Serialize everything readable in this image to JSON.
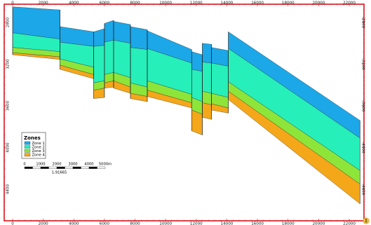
{
  "chart_data": {
    "type": "area",
    "title": "",
    "xlabel": "",
    "ylabel": "",
    "xlim": [
      -200,
      22900
    ],
    "ylim": [
      4600,
      2550
    ],
    "x_ticks": [
      "0",
      "2000",
      "4000",
      "6000",
      "8000",
      "10000",
      "12000",
      "14000",
      "16000",
      "18000",
      "20000",
      "22000"
    ],
    "y_ticks": [
      "2800",
      "3200",
      "3600",
      "4000",
      "4400"
    ],
    "y_ticks_right": [
      "-2800",
      "-3200",
      "-3600",
      "-4000",
      "-4400"
    ],
    "grid": false,
    "legend": {
      "title": "Zones",
      "placement": "bottom-left",
      "entries": [
        "Zone 1",
        "Zone 2",
        "Zone 3",
        "Zone 4"
      ]
    },
    "scale_bar": {
      "labels": [
        "0",
        "1000",
        "2000",
        "3000",
        "4000",
        "5000m"
      ],
      "ratio": "1:91665"
    },
    "colors": {
      "zone1": "#1ba7e8",
      "zone2": "#27efba",
      "zone3": "#8ee53a",
      "zone4": "#f5a71a",
      "frame": "#d9141c",
      "fault": "#222222"
    },
    "series": [
      {
        "name": "Zone 1",
        "color": "#1ba7e8"
      },
      {
        "name": "Zone 2",
        "color": "#27efba"
      },
      {
        "name": "Zone 3",
        "color": "#8ee53a"
      },
      {
        "name": "Zone 4",
        "color": "#f5a71a"
      }
    ],
    "segments": [
      {
        "x": [
          0,
          3100
        ],
        "h1": [
          2650,
          2680
        ],
        "h2": [
          2900,
          2960
        ],
        "h3": [
          3040,
          3080
        ],
        "h4": [
          3090,
          3130
        ],
        "h5": [
          3110,
          3155
        ]
      },
      {
        "x": [
          3100,
          5300
        ],
        "h1": [
          2840,
          2890
        ],
        "h2": [
          2990,
          3030
        ],
        "h3": [
          3150,
          3230
        ],
        "h4": [
          3210,
          3300
        ],
        "h5": [
          3250,
          3340
        ]
      },
      {
        "x": [
          5300,
          6000
        ],
        "h1": [
          2890,
          2860
        ],
        "h2": [
          3030,
          3020
        ],
        "h3": [
          3380,
          3360
        ],
        "h4": [
          3450,
          3430
        ],
        "h5": [
          3530,
          3520
        ]
      },
      {
        "x": [
          6000,
          6600
        ],
        "h1": [
          2810,
          2780
        ],
        "h2": [
          2990,
          2970
        ],
        "h3": [
          3300,
          3280
        ],
        "h4": [
          3380,
          3360
        ],
        "h5": [
          3430,
          3420
        ]
      },
      {
        "x": [
          6600,
          7700
        ],
        "h1": [
          2790,
          2820
        ],
        "h2": [
          2970,
          3000
        ],
        "h3": [
          3280,
          3330
        ],
        "h4": [
          3360,
          3420
        ],
        "h5": [
          3430,
          3480
        ]
      },
      {
        "x": [
          7700,
          8800
        ],
        "h1": [
          2840,
          2870
        ],
        "h2": [
          3040,
          3060
        ],
        "h3": [
          3380,
          3420
        ],
        "h4": [
          3480,
          3510
        ],
        "h5": [
          3530,
          3560
        ]
      },
      {
        "x": [
          8800,
          11700
        ],
        "h1": [
          2880,
          3060
        ],
        "h2": [
          3050,
          3190
        ],
        "h3": [
          3360,
          3490
        ],
        "h4": [
          3450,
          3570
        ],
        "h5": [
          3510,
          3620
        ]
      },
      {
        "x": [
          11700,
          12400
        ],
        "h1": [
          3080,
          3110
        ],
        "h2": [
          3250,
          3270
        ],
        "h3": [
          3520,
          3560
        ],
        "h4": [
          3640,
          3680
        ],
        "h5": [
          3840,
          3880
        ]
      },
      {
        "x": [
          12400,
          13000
        ],
        "h1": [
          3000,
          3010
        ],
        "h2": [
          3180,
          3190
        ],
        "h3": [
          3460,
          3480
        ],
        "h4": [
          3570,
          3590
        ],
        "h5": [
          3710,
          3730
        ]
      },
      {
        "x": [
          13000,
          14100
        ],
        "h1": [
          3040,
          3070
        ],
        "h2": [
          3190,
          3220
        ],
        "h3": [
          3480,
          3520
        ],
        "h4": [
          3580,
          3620
        ],
        "h5": [
          3640,
          3670
        ]
      },
      {
        "x": [
          14100,
          22700
        ],
        "h1": [
          2890,
          3740
        ],
        "h2": [
          3050,
          3910
        ],
        "h3": [
          3370,
          4220
        ],
        "h4": [
          3460,
          4350
        ],
        "h5": [
          3540,
          4540
        ]
      }
    ]
  }
}
